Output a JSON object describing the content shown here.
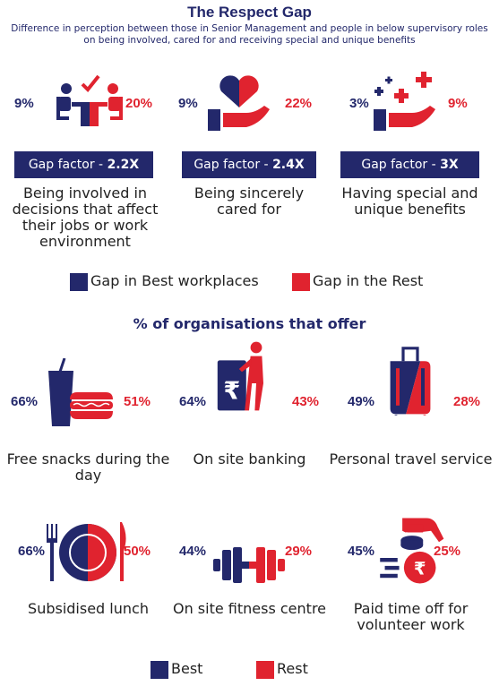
{
  "title": "The Respect Gap",
  "subtitle": "Difference in perception between those in Senior Management and people in below supervisory roles on being involved, cared for and receiving special and unique benefits",
  "gap_items": [
    {
      "best_pct": "9%",
      "rest_pct": "20%",
      "factor_prefix": "Gap factor - ",
      "factor_value": "2.2X",
      "label": "Being involved in decisions that affect their jobs or work environment",
      "icon": "meeting-icon"
    },
    {
      "best_pct": "9%",
      "rest_pct": "22%",
      "factor_prefix": "Gap factor - ",
      "factor_value": "2.4X",
      "label": "Being sincerely cared for",
      "icon": "heart-hand-icon"
    },
    {
      "best_pct": "3%",
      "rest_pct": "9%",
      "factor_prefix": "Gap factor - ",
      "factor_value": "3X",
      "label": "Having special and unique benefits",
      "icon": "plus-hand-icon"
    }
  ],
  "legend_gap": {
    "best": "Gap in Best workplaces",
    "rest": "Gap in the Rest"
  },
  "section2_title": "% of organisations that offer",
  "offers": [
    {
      "best_pct": "66%",
      "rest_pct": "51%",
      "label": "Free snacks during the day",
      "icon": "snack-icon"
    },
    {
      "best_pct": "64%",
      "rest_pct": "43%",
      "label": "On site banking",
      "icon": "atm-icon"
    },
    {
      "best_pct": "49%",
      "rest_pct": "28%",
      "label": "Personal travel service",
      "icon": "suitcase-icon"
    },
    {
      "best_pct": "66%",
      "rest_pct": "50%",
      "label": "Subsidised lunch",
      "icon": "plate-icon"
    },
    {
      "best_pct": "44%",
      "rest_pct": "29%",
      "label": "On site fitness centre",
      "icon": "dumbbell-icon"
    },
    {
      "best_pct": "45%",
      "rest_pct": "25%",
      "label": "Paid time off for volunteer work",
      "icon": "coin-hand-icon"
    }
  ],
  "legend_offer": {
    "best": "Best",
    "rest": "Rest"
  },
  "colors": {
    "navy": "#23286b",
    "red": "#e0232f"
  }
}
